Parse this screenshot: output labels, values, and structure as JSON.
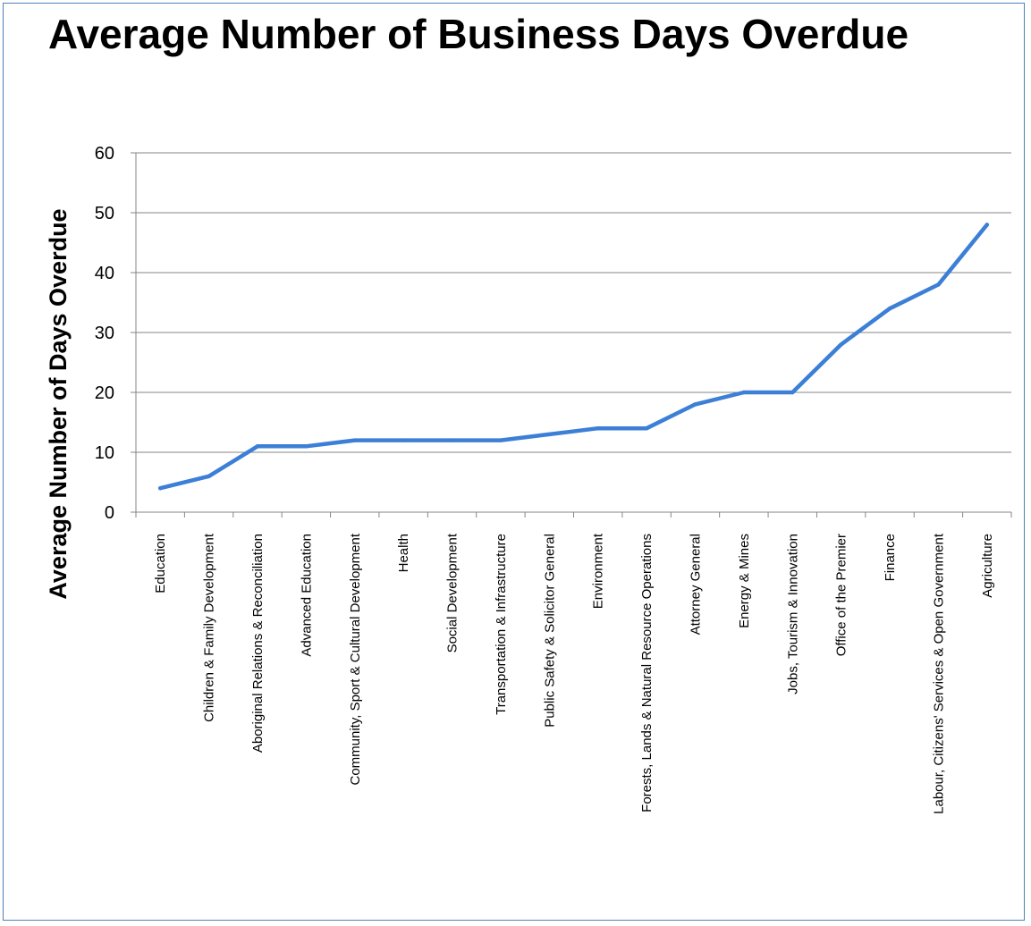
{
  "chart_data": {
    "type": "line",
    "title": "Average Number of Business Days Overdue",
    "xlabel": "",
    "ylabel": "Average Number of Days Overdue",
    "ylim": [
      0,
      60
    ],
    "yticks": [
      0,
      10,
      20,
      30,
      40,
      50,
      60
    ],
    "grid": true,
    "legend": "none",
    "categories": [
      "Education",
      "Children & Family Development",
      "Aboriginal Relations & Reconciliation",
      "Advanced Education",
      "Community, Sport & Cultural Development",
      "Health",
      "Social Development",
      "Transportation & Infrastructure",
      "Public Safety & Solicitor General",
      "Environment",
      "Forests, Lands & Natural Resource Operations",
      "Attorney General",
      "Energy & Mines",
      "Jobs, Tourism & Innovation",
      "Office of the Premier",
      "Finance",
      "Labour, Citizens' Services & Open Government",
      "Agriculture"
    ],
    "series": [
      {
        "values": [
          4,
          6,
          11,
          11,
          12,
          12,
          12,
          12,
          13,
          14,
          14,
          18,
          20,
          20,
          28,
          34,
          38,
          48
        ],
        "color": "#3c7fd6"
      }
    ]
  }
}
